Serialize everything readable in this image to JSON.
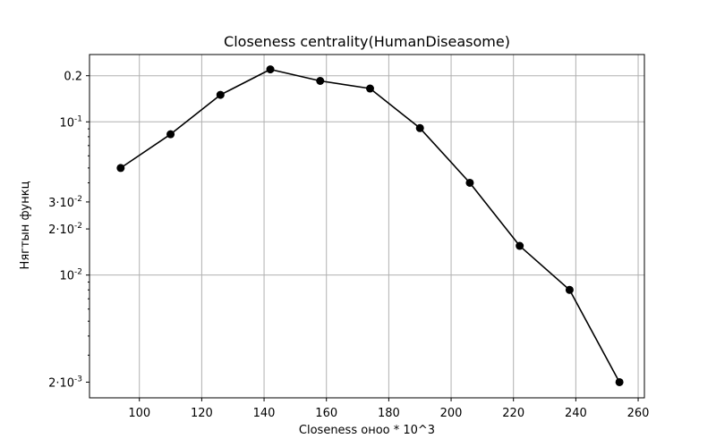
{
  "chart_data": {
    "type": "line",
    "title": "Closeness centrality(HumanDiseasome)",
    "xlabel": "Closeness оноо * 10^3",
    "ylabel": "Нягтын функц",
    "xlim": [
      84,
      262
    ],
    "ylim": [
      0.00158,
      0.275
    ],
    "yscale": "log",
    "grid": true,
    "line_color": "#000000",
    "marker_color": "#000000",
    "x_ticks": [
      {
        "value": 100,
        "label": "100"
      },
      {
        "value": 120,
        "label": "120"
      },
      {
        "value": 140,
        "label": "140"
      },
      {
        "value": 160,
        "label": "160"
      },
      {
        "value": 180,
        "label": "180"
      },
      {
        "value": 200,
        "label": "200"
      },
      {
        "value": 220,
        "label": "220"
      },
      {
        "value": 240,
        "label": "240"
      },
      {
        "value": 260,
        "label": "260"
      }
    ],
    "y_ticks": [
      {
        "value": 0.2,
        "label": "0.2",
        "grid": true
      },
      {
        "value": 0.1,
        "label": "10^{-1}",
        "grid": true
      },
      {
        "value": 0.03,
        "label": "3·10^{-2}",
        "grid": false
      },
      {
        "value": 0.02,
        "label": "2·10^{-2}",
        "grid": false
      },
      {
        "value": 0.01,
        "label": "10^{-2}",
        "grid": true
      },
      {
        "value": 0.002,
        "label": "2·10^{-3}",
        "grid": false
      }
    ],
    "y_minor_ticks": [
      0.003,
      0.004,
      0.005,
      0.006,
      0.007,
      0.008,
      0.009,
      0.04,
      0.05,
      0.06,
      0.07,
      0.08,
      0.09
    ],
    "series": [
      {
        "x": [
          94,
          110,
          126,
          142,
          158,
          174,
          190,
          206,
          222,
          238,
          254
        ],
        "values": [
          0.05,
          0.083,
          0.15,
          0.22,
          0.185,
          0.165,
          0.091,
          0.04,
          0.0155,
          0.008,
          0.002
        ]
      }
    ]
  }
}
